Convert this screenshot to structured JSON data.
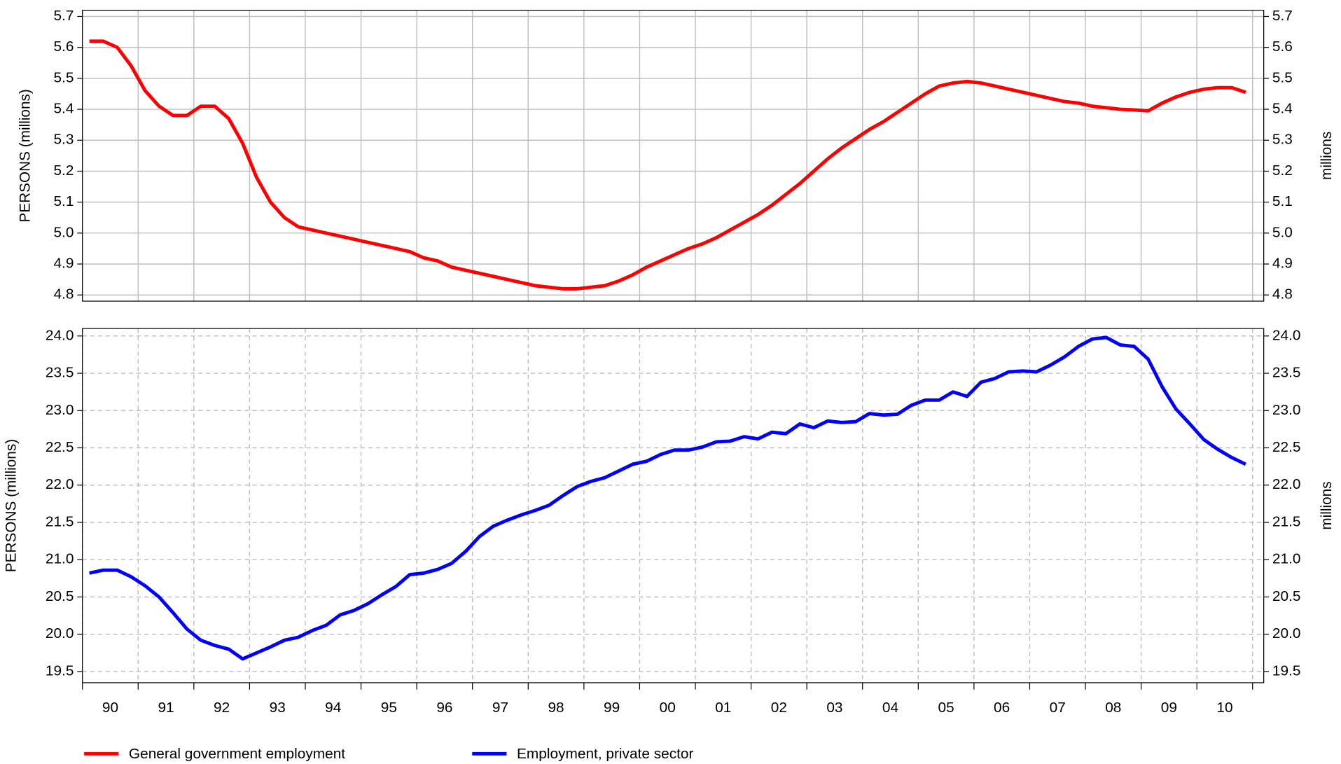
{
  "chart_data": [
    {
      "type": "line",
      "ylabel": "PERSONS (millions)",
      "y2label": "millions",
      "grid": "solid",
      "xlim": [
        1990,
        2011.2
      ],
      "xgrid": [
        1990,
        1991,
        1992,
        1993,
        1994,
        1995,
        1996,
        1997,
        1998,
        1999,
        2000,
        2001,
        2002,
        2003,
        2004,
        2005,
        2006,
        2007,
        2008,
        2009,
        2010,
        2011
      ],
      "ylim": [
        4.78,
        5.72
      ],
      "yticks": [
        4.8,
        4.9,
        {
          "value": 5.0,
          "label": "5.0"
        },
        5.1,
        5.2,
        5.3,
        5.4,
        5.5,
        5.6,
        5.7
      ],
      "x": [
        1990.125,
        1990.375,
        1990.625,
        1990.875,
        1991.125,
        1991.375,
        1991.625,
        1991.875,
        1992.125,
        1992.375,
        1992.625,
        1992.875,
        1993.125,
        1993.375,
        1993.625,
        1993.875,
        1994.125,
        1994.375,
        1994.625,
        1994.875,
        1995.125,
        1995.375,
        1995.625,
        1995.875,
        1996.125,
        1996.375,
        1996.625,
        1996.875,
        1997.125,
        1997.375,
        1997.625,
        1997.875,
        1998.125,
        1998.375,
        1998.625,
        1998.875,
        1999.125,
        1999.375,
        1999.625,
        1999.875,
        2000.125,
        2000.375,
        2000.625,
        2000.875,
        2001.125,
        2001.375,
        2001.625,
        2001.875,
        2002.125,
        2002.375,
        2002.625,
        2002.875,
        2003.125,
        2003.375,
        2003.625,
        2003.875,
        2004.125,
        2004.375,
        2004.625,
        2004.875,
        2005.125,
        2005.375,
        2005.625,
        2005.875,
        2006.125,
        2006.375,
        2006.625,
        2006.875,
        2007.125,
        2007.375,
        2007.625,
        2007.875,
        2008.125,
        2008.375,
        2008.625,
        2008.875,
        2009.125,
        2009.375,
        2009.625,
        2009.875,
        2010.125,
        2010.375,
        2010.625,
        2010.875
      ],
      "series": [
        {
          "name": "General government employment",
          "color": "#ff0000",
          "values": [
            5.62,
            5.62,
            5.6,
            5.54,
            5.46,
            5.41,
            5.38,
            5.38,
            5.41,
            5.41,
            5.37,
            5.29,
            5.18,
            5.1,
            5.05,
            5.02,
            5.01,
            5.0,
            4.99,
            4.98,
            4.97,
            4.96,
            4.95,
            4.94,
            4.92,
            4.91,
            4.89,
            4.88,
            4.87,
            4.86,
            4.85,
            4.84,
            4.83,
            4.825,
            4.82,
            4.82,
            4.825,
            4.83,
            4.845,
            4.865,
            4.89,
            4.91,
            4.93,
            4.95,
            4.965,
            4.985,
            5.01,
            5.035,
            5.06,
            5.09,
            5.125,
            5.16,
            5.2,
            5.24,
            5.275,
            5.305,
            5.335,
            5.36,
            5.39,
            5.42,
            5.45,
            5.475,
            5.485,
            5.49,
            5.485,
            5.475,
            5.465,
            5.455,
            5.445,
            5.435,
            5.425,
            5.42,
            5.41,
            5.405,
            5.4,
            5.398,
            5.395,
            5.42,
            5.44,
            5.455,
            5.465,
            5.47,
            5.47,
            5.455
          ]
        }
      ]
    },
    {
      "type": "line",
      "ylabel": "PERSONS (millions)",
      "y2label": "millions",
      "grid": "dashed",
      "xlim": [
        1990,
        2011.2
      ],
      "xgrid": [
        1990,
        1991,
        1992,
        1993,
        1994,
        1995,
        1996,
        1997,
        1998,
        1999,
        2000,
        2001,
        2002,
        2003,
        2004,
        2005,
        2006,
        2007,
        2008,
        2009,
        2010,
        2011
      ],
      "xticks": [
        {
          "value": 1990.5,
          "label": "90"
        },
        {
          "value": 1991.5,
          "label": "91"
        },
        {
          "value": 1992.5,
          "label": "92"
        },
        {
          "value": 1993.5,
          "label": "93"
        },
        {
          "value": 1994.5,
          "label": "94"
        },
        {
          "value": 1995.5,
          "label": "95"
        },
        {
          "value": 1996.5,
          "label": "96"
        },
        {
          "value": 1997.5,
          "label": "97"
        },
        {
          "value": 1998.5,
          "label": "98"
        },
        {
          "value": 1999.5,
          "label": "99"
        },
        {
          "value": 2000.5,
          "label": "00"
        },
        {
          "value": 2001.5,
          "label": "01"
        },
        {
          "value": 2002.5,
          "label": "02"
        },
        {
          "value": 2003.5,
          "label": "03"
        },
        {
          "value": 2004.5,
          "label": "04"
        },
        {
          "value": 2005.5,
          "label": "05"
        },
        {
          "value": 2006.5,
          "label": "06"
        },
        {
          "value": 2007.5,
          "label": "07"
        },
        {
          "value": 2008.5,
          "label": "08"
        },
        {
          "value": 2009.5,
          "label": "09"
        },
        {
          "value": 2010.5,
          "label": "10"
        }
      ],
      "ylim": [
        19.35,
        24.1
      ],
      "yticks": [
        19.5,
        {
          "value": 20.0,
          "label": "20.0"
        },
        20.5,
        {
          "value": 21.0,
          "label": "21.0"
        },
        21.5,
        {
          "value": 22.0,
          "label": "22.0"
        },
        22.5,
        {
          "value": 23.0,
          "label": "23.0"
        },
        23.5,
        {
          "value": 24.0,
          "label": "24.0"
        }
      ],
      "x": [
        1990.125,
        1990.375,
        1990.625,
        1990.875,
        1991.125,
        1991.375,
        1991.625,
        1991.875,
        1992.125,
        1992.375,
        1992.625,
        1992.875,
        1993.125,
        1993.375,
        1993.625,
        1993.875,
        1994.125,
        1994.375,
        1994.625,
        1994.875,
        1995.125,
        1995.375,
        1995.625,
        1995.875,
        1996.125,
        1996.375,
        1996.625,
        1996.875,
        1997.125,
        1997.375,
        1997.625,
        1997.875,
        1998.125,
        1998.375,
        1998.625,
        1998.875,
        1999.125,
        1999.375,
        1999.625,
        1999.875,
        2000.125,
        2000.375,
        2000.625,
        2000.875,
        2001.125,
        2001.375,
        2001.625,
        2001.875,
        2002.125,
        2002.375,
        2002.625,
        2002.875,
        2003.125,
        2003.375,
        2003.625,
        2003.875,
        2004.125,
        2004.375,
        2004.625,
        2004.875,
        2005.125,
        2005.375,
        2005.625,
        2005.875,
        2006.125,
        2006.375,
        2006.625,
        2006.875,
        2007.125,
        2007.375,
        2007.625,
        2007.875,
        2008.125,
        2008.375,
        2008.625,
        2008.875,
        2009.125,
        2009.375,
        2009.625,
        2009.875,
        2010.125,
        2010.375,
        2010.625,
        2010.875
      ],
      "series": [
        {
          "name": "Employment, private sector",
          "color": "#0000ff",
          "values": [
            20.82,
            20.86,
            20.86,
            20.77,
            20.65,
            20.5,
            20.29,
            20.07,
            19.92,
            19.85,
            19.8,
            19.67,
            19.75,
            19.83,
            19.92,
            19.96,
            20.05,
            20.12,
            20.26,
            20.32,
            20.41,
            20.53,
            20.64,
            20.8,
            20.82,
            20.87,
            20.95,
            21.11,
            21.31,
            21.45,
            21.53,
            21.6,
            21.66,
            21.73,
            21.86,
            21.98,
            22.05,
            22.1,
            22.19,
            22.28,
            22.32,
            22.41,
            22.47,
            22.47,
            22.51,
            22.58,
            22.59,
            22.65,
            22.62,
            22.71,
            22.69,
            22.82,
            22.77,
            22.86,
            22.84,
            22.85,
            22.96,
            22.94,
            22.95,
            23.07,
            23.14,
            23.14,
            23.25,
            23.19,
            23.38,
            23.43,
            23.52,
            23.53,
            23.52,
            23.61,
            23.72,
            23.86,
            23.96,
            23.98,
            23.88,
            23.86,
            23.69,
            23.32,
            23.02,
            22.82,
            22.61,
            22.48,
            22.37,
            22.28
          ]
        }
      ]
    }
  ]
}
